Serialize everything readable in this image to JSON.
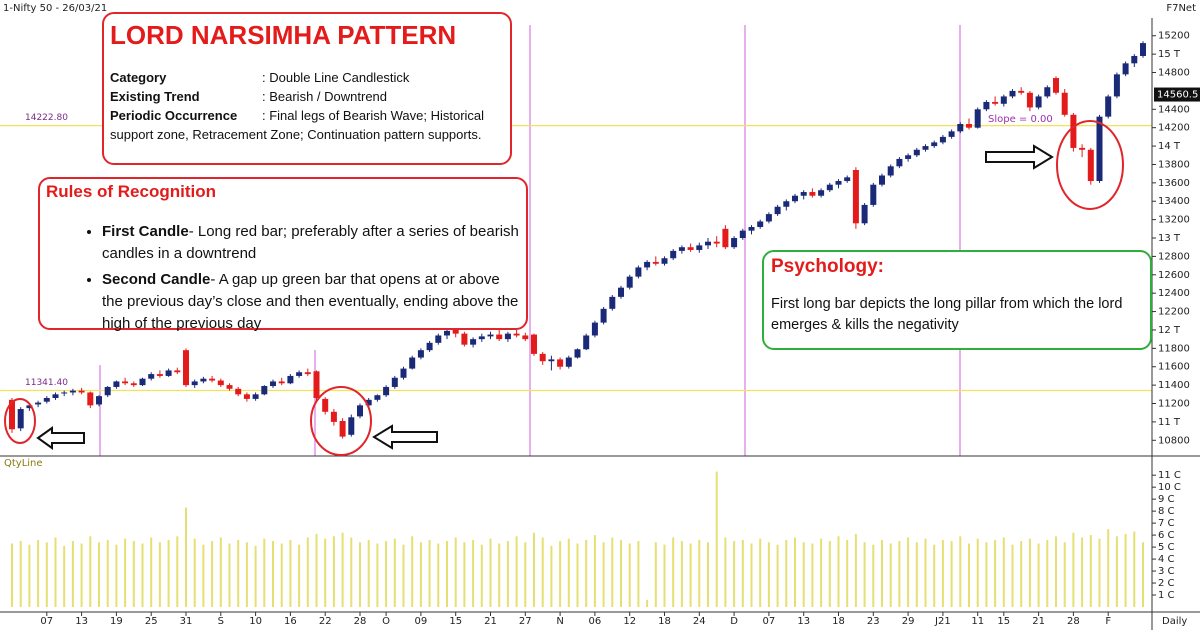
{
  "chart_data": {
    "type": "candlestick",
    "title": "1-Nifty 50 - 26/03/21",
    "source": "F7Net",
    "interval": "Daily",
    "up_color": "#1b2a78",
    "down_color": "#e31b1b",
    "ylim": [
      10640,
      15480
    ],
    "yticks": [
      10800,
      {
        "value": 11000,
        "label": "11 T"
      },
      11200,
      11400,
      11600,
      11800,
      {
        "value": 12000,
        "label": "12 T"
      },
      12200,
      12400,
      12600,
      12800,
      {
        "value": 13000,
        "label": "13 T"
      },
      13200,
      13400,
      13600,
      13800,
      {
        "value": 14000,
        "label": "14 T"
      },
      14200,
      14400,
      14800,
      {
        "value": 15000,
        "label": "15 T"
      },
      15200
    ],
    "last_price": 14560.5,
    "hlines": [
      {
        "value": 14222.8,
        "label": "14222.80"
      },
      {
        "value": 11341.4,
        "label": "11341.40"
      }
    ],
    "hline_color": "#f2e25a",
    "slope_label": "Slope = 0.00",
    "categories": [
      null,
      null,
      null,
      null,
      "07",
      null,
      null,
      null,
      "13",
      null,
      null,
      null,
      "19",
      null,
      null,
      null,
      "25",
      null,
      null,
      null,
      "31",
      null,
      null,
      null,
      "S",
      null,
      null,
      null,
      "10",
      null,
      null,
      null,
      "16",
      null,
      null,
      null,
      "22",
      null,
      null,
      null,
      "28",
      null,
      null,
      "O",
      null,
      null,
      null,
      "09",
      null,
      null,
      null,
      "15",
      null,
      null,
      null,
      "21",
      null,
      null,
      null,
      "27",
      null,
      null,
      null,
      "N",
      null,
      null,
      null,
      "06",
      null,
      null,
      null,
      "12",
      null,
      null,
      null,
      "18",
      null,
      null,
      null,
      "24",
      null,
      null,
      null,
      "D",
      null,
      null,
      null,
      "07",
      null,
      null,
      null,
      "13",
      null,
      null,
      null,
      "18",
      null,
      null,
      null,
      "23",
      null,
      null,
      null,
      "29",
      null,
      null,
      null,
      "J21",
      null,
      null,
      null,
      "11",
      null,
      null,
      "15",
      null,
      null,
      null,
      "21",
      null,
      null,
      null,
      "28",
      null,
      null,
      null,
      "F",
      null,
      null,
      null,
      null
    ],
    "ohlc": [
      [
        11240,
        11260,
        10880,
        10920
      ],
      [
        10930,
        11160,
        10900,
        11140
      ],
      [
        11150,
        11200,
        11120,
        11180
      ],
      [
        11190,
        11230,
        11160,
        11210
      ],
      [
        11220,
        11280,
        11200,
        11260
      ],
      [
        11260,
        11320,
        11240,
        11300
      ],
      [
        11310,
        11340,
        11280,
        11320
      ],
      [
        11320,
        11360,
        11290,
        11340
      ],
      [
        11340,
        11370,
        11300,
        11320
      ],
      [
        11320,
        11330,
        11150,
        11180
      ],
      [
        11190,
        11290,
        11170,
        11280
      ],
      [
        11290,
        11390,
        11270,
        11380
      ],
      [
        11380,
        11450,
        11360,
        11440
      ],
      [
        11440,
        11480,
        11400,
        11420
      ],
      [
        11420,
        11440,
        11380,
        11400
      ],
      [
        11400,
        11480,
        11390,
        11470
      ],
      [
        11470,
        11540,
        11450,
        11520
      ],
      [
        11520,
        11560,
        11480,
        11500
      ],
      [
        11500,
        11580,
        11490,
        11560
      ],
      [
        11560,
        11590,
        11520,
        11540
      ],
      [
        11780,
        11800,
        11380,
        11400
      ],
      [
        11400,
        11460,
        11370,
        11440
      ],
      [
        11440,
        11490,
        11420,
        11470
      ],
      [
        11470,
        11500,
        11430,
        11450
      ],
      [
        11450,
        11470,
        11380,
        11400
      ],
      [
        11400,
        11420,
        11340,
        11360
      ],
      [
        11360,
        11380,
        11280,
        11300
      ],
      [
        11300,
        11320,
        11220,
        11250
      ],
      [
        11250,
        11320,
        11230,
        11300
      ],
      [
        11300,
        11400,
        11290,
        11390
      ],
      [
        11390,
        11460,
        11370,
        11440
      ],
      [
        11440,
        11480,
        11400,
        11420
      ],
      [
        11420,
        11520,
        11410,
        11500
      ],
      [
        11500,
        11560,
        11480,
        11540
      ],
      [
        11540,
        11580,
        11500,
        11520
      ],
      [
        11550,
        11560,
        11230,
        11260
      ],
      [
        11250,
        11270,
        11080,
        11110
      ],
      [
        11110,
        11140,
        10960,
        11000
      ],
      [
        11010,
        11040,
        10820,
        10840
      ],
      [
        10860,
        11080,
        10840,
        11050
      ],
      [
        11060,
        11200,
        11040,
        11180
      ],
      [
        11180,
        11260,
        11150,
        11240
      ],
      [
        11240,
        11300,
        11220,
        11290
      ],
      [
        11290,
        11400,
        11270,
        11380
      ],
      [
        11380,
        11500,
        11360,
        11480
      ],
      [
        11480,
        11600,
        11460,
        11580
      ],
      [
        11580,
        11720,
        11570,
        11700
      ],
      [
        11700,
        11800,
        11680,
        11780
      ],
      [
        11780,
        11880,
        11760,
        11860
      ],
      [
        11860,
        11960,
        11840,
        11940
      ],
      [
        11940,
        12010,
        11900,
        11990
      ],
      [
        12000,
        12020,
        11920,
        11960
      ],
      [
        11960,
        11980,
        11820,
        11840
      ],
      [
        11840,
        11920,
        11810,
        11900
      ],
      [
        11900,
        11960,
        11870,
        11930
      ],
      [
        11930,
        11980,
        11900,
        11950
      ],
      [
        11950,
        12000,
        11880,
        11900
      ],
      [
        11900,
        11980,
        11870,
        11960
      ],
      [
        11960,
        12000,
        11920,
        11940
      ],
      [
        11940,
        11970,
        11880,
        11900
      ],
      [
        11950,
        11960,
        11720,
        11740
      ],
      [
        11740,
        11760,
        11620,
        11660
      ],
      [
        11660,
        11720,
        11560,
        11680
      ],
      [
        11680,
        11700,
        11570,
        11600
      ],
      [
        11600,
        11720,
        11580,
        11700
      ],
      [
        11700,
        11800,
        11690,
        11790
      ],
      [
        11790,
        11960,
        11780,
        11940
      ],
      [
        11940,
        12100,
        11920,
        12080
      ],
      [
        12080,
        12250,
        12060,
        12230
      ],
      [
        12230,
        12380,
        12210,
        12360
      ],
      [
        12360,
        12480,
        12340,
        12460
      ],
      [
        12460,
        12600,
        12440,
        12580
      ],
      [
        12580,
        12700,
        12560,
        12680
      ],
      [
        12680,
        12760,
        12650,
        12740
      ],
      [
        12740,
        12800,
        12700,
        12720
      ],
      [
        12720,
        12800,
        12700,
        12780
      ],
      [
        12780,
        12880,
        12760,
        12860
      ],
      [
        12860,
        12920,
        12830,
        12900
      ],
      [
        12900,
        12940,
        12850,
        12870
      ],
      [
        12870,
        12950,
        12840,
        12920
      ],
      [
        12920,
        13000,
        12880,
        12960
      ],
      [
        12960,
        13020,
        12900,
        12940
      ],
      [
        13100,
        13140,
        12880,
        12900
      ],
      [
        12900,
        13020,
        12880,
        13000
      ],
      [
        13000,
        13100,
        12980,
        13080
      ],
      [
        13080,
        13140,
        13040,
        13120
      ],
      [
        13120,
        13200,
        13100,
        13180
      ],
      [
        13180,
        13280,
        13160,
        13260
      ],
      [
        13260,
        13360,
        13240,
        13340
      ],
      [
        13340,
        13420,
        13300,
        13400
      ],
      [
        13400,
        13480,
        13380,
        13460
      ],
      [
        13460,
        13520,
        13420,
        13500
      ],
      [
        13500,
        13540,
        13440,
        13460
      ],
      [
        13460,
        13540,
        13440,
        13520
      ],
      [
        13520,
        13600,
        13500,
        13580
      ],
      [
        13580,
        13640,
        13540,
        13620
      ],
      [
        13620,
        13680,
        13600,
        13660
      ],
      [
        13740,
        13770,
        13100,
        13160
      ],
      [
        13160,
        13380,
        13140,
        13360
      ],
      [
        13360,
        13600,
        13340,
        13580
      ],
      [
        13580,
        13700,
        13560,
        13680
      ],
      [
        13680,
        13800,
        13660,
        13780
      ],
      [
        13780,
        13880,
        13760,
        13860
      ],
      [
        13860,
        13920,
        13830,
        13900
      ],
      [
        13900,
        13980,
        13880,
        13960
      ],
      [
        13960,
        14020,
        13940,
        14000
      ],
      [
        14000,
        14060,
        13980,
        14040
      ],
      [
        14040,
        14120,
        14020,
        14100
      ],
      [
        14100,
        14180,
        14080,
        14160
      ],
      [
        14160,
        14260,
        14140,
        14240
      ],
      [
        14240,
        14300,
        14180,
        14200
      ],
      [
        14200,
        14420,
        14190,
        14400
      ],
      [
        14400,
        14500,
        14380,
        14480
      ],
      [
        14480,
        14540,
        14440,
        14460
      ],
      [
        14460,
        14560,
        14430,
        14540
      ],
      [
        14540,
        14620,
        14520,
        14600
      ],
      [
        14600,
        14640,
        14560,
        14580
      ],
      [
        14580,
        14600,
        14380,
        14420
      ],
      [
        14420,
        14560,
        14400,
        14540
      ],
      [
        14540,
        14660,
        14520,
        14640
      ],
      [
        14740,
        14760,
        14560,
        14580
      ],
      [
        14580,
        14620,
        14320,
        14340
      ],
      [
        14340,
        14360,
        13940,
        13980
      ],
      [
        13980,
        14020,
        13880,
        13960
      ],
      [
        13960,
        13980,
        13580,
        13620
      ],
      [
        13620,
        14340,
        13600,
        14320
      ],
      [
        14320,
        14560,
        14300,
        14540
      ],
      [
        14540,
        14800,
        14520,
        14780
      ],
      [
        14780,
        14920,
        14760,
        14900
      ],
      [
        14900,
        15000,
        14860,
        14980
      ],
      [
        14980,
        15140,
        14960,
        15120
      ]
    ],
    "volume": {
      "label": "QtyLine",
      "color": "#e6df72",
      "ylim": [
        0,
        12.1
      ],
      "yticks": [
        {
          "value": 1,
          "label": "1 C"
        },
        {
          "value": 2,
          "label": "2 C"
        },
        {
          "value": 3,
          "label": "3 C"
        },
        {
          "value": 4,
          "label": "4 C"
        },
        {
          "value": 5,
          "label": "5 C"
        },
        {
          "value": 6,
          "label": "6 C"
        },
        {
          "value": 7,
          "label": "7 C"
        },
        {
          "value": 8,
          "label": "8 C"
        },
        {
          "value": 9,
          "label": "9 C"
        },
        {
          "value": 10,
          "label": "10 C"
        },
        {
          "value": 11,
          "label": "11 C"
        }
      ],
      "values": [
        5.3,
        5.5,
        5.2,
        5.6,
        5.4,
        5.8,
        5.1,
        5.5,
        5.3,
        5.9,
        5.4,
        5.6,
        5.2,
        5.7,
        5.5,
        5.3,
        5.8,
        5.4,
        5.6,
        5.9,
        8.3,
        5.7,
        5.2,
        5.5,
        5.8,
        5.3,
        5.6,
        5.4,
        5.1,
        5.7,
        5.5,
        5.3,
        5.6,
        5.2,
        5.8,
        6.1,
        5.7,
        5.9,
        6.2,
        5.8,
        5.4,
        5.6,
        5.3,
        5.5,
        5.7,
        5.2,
        5.9,
        5.4,
        5.6,
        5.3,
        5.5,
        5.8,
        5.4,
        5.6,
        5.2,
        5.7,
        5.3,
        5.5,
        5.9,
        5.4,
        6.2,
        5.8,
        5.1,
        5.5,
        5.7,
        5.3,
        5.6,
        6.0,
        5.4,
        5.8,
        5.6,
        5.3,
        5.5,
        0.6,
        5.4,
        5.2,
        5.8,
        5.5,
        5.3,
        5.6,
        5.4,
        11.3,
        5.8,
        5.5,
        5.6,
        5.3,
        5.7,
        5.4,
        5.2,
        5.6,
        5.8,
        5.4,
        5.3,
        5.7,
        5.5,
        5.9,
        5.6,
        6.1,
        5.4,
        5.2,
        5.6,
        5.3,
        5.5,
        5.8,
        5.4,
        5.7,
        5.2,
        5.6,
        5.5,
        5.9,
        5.3,
        5.7,
        5.4,
        5.6,
        5.8,
        5.2,
        5.5,
        5.7,
        5.3,
        5.6,
        5.9,
        5.4,
        6.2,
        5.8,
        6.0,
        5.7,
        6.5,
        5.9,
        6.1,
        6.3,
        5.4
      ]
    },
    "annotations": {
      "pattern_box": {
        "title": "LORD NARSIMHA PATTERN",
        "rows": [
          [
            "Category",
            ": Double Line Candlestick"
          ],
          [
            "Existing Trend",
            ": Bearish / Downtrend"
          ],
          [
            "Periodic Occurrence",
            ": Final legs of Bearish Wave; Historical support zone, Retracement Zone; Continuation pattern supports."
          ]
        ]
      },
      "rules_box": {
        "title": "Rules of Recognition",
        "items": [
          {
            "term": "First Candle",
            "text": "- Long red bar; preferably after a series of bearish candles in a downtrend"
          },
          {
            "term": "Second Candle",
            "text": "- A gap up green bar that opens at or above the previous day’s close and then eventually, ending above the high of the previous day"
          }
        ]
      },
      "psychology_box": {
        "title": "Psychology:",
        "text": "First long bar depicts the long pillar from which the lord emerges & kills the negativity"
      }
    }
  }
}
